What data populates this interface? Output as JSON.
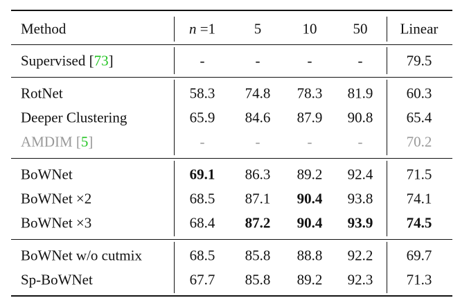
{
  "table": {
    "header": [
      "Method",
      "n =1",
      "5",
      "10",
      "50",
      "Linear"
    ],
    "groups": [
      {
        "rows": [
          {
            "method": "Supervised [73]",
            "link": "73",
            "values": [
              "-",
              "-",
              "-",
              "-",
              "79.5"
            ]
          }
        ]
      },
      {
        "rows": [
          {
            "method": "RotNet",
            "values": [
              "58.3",
              "74.8",
              "78.3",
              "81.9",
              "60.3"
            ]
          },
          {
            "method": "Deeper Clustering",
            "values": [
              "65.9",
              "84.6",
              "87.9",
              "90.8",
              "65.4"
            ]
          },
          {
            "method": "AMDIM [5]",
            "link": "5",
            "muted": true,
            "values": [
              "-",
              "-",
              "-",
              "-",
              "70.2"
            ]
          }
        ]
      },
      {
        "rows": [
          {
            "method": "BoWNet",
            "values": [
              "69.1",
              "86.3",
              "89.2",
              "92.4",
              "71.5"
            ],
            "bold": [
              0
            ]
          },
          {
            "method": "BoWNet ×2",
            "values": [
              "68.5",
              "87.1",
              "90.4",
              "93.8",
              "74.1"
            ],
            "bold": [
              2
            ]
          },
          {
            "method": "BoWNet ×3",
            "values": [
              "68.4",
              "87.2",
              "90.4",
              "93.9",
              "74.5"
            ],
            "bold": [
              1,
              2,
              3,
              4
            ]
          }
        ]
      },
      {
        "rows": [
          {
            "method": "BoWNet w/o cutmix",
            "values": [
              "68.5",
              "85.8",
              "88.8",
              "92.2",
              "69.7"
            ]
          },
          {
            "method": "Sp-BoWNet",
            "values": [
              "67.7",
              "85.8",
              "89.2",
              "92.3",
              "71.3"
            ]
          }
        ]
      }
    ]
  }
}
